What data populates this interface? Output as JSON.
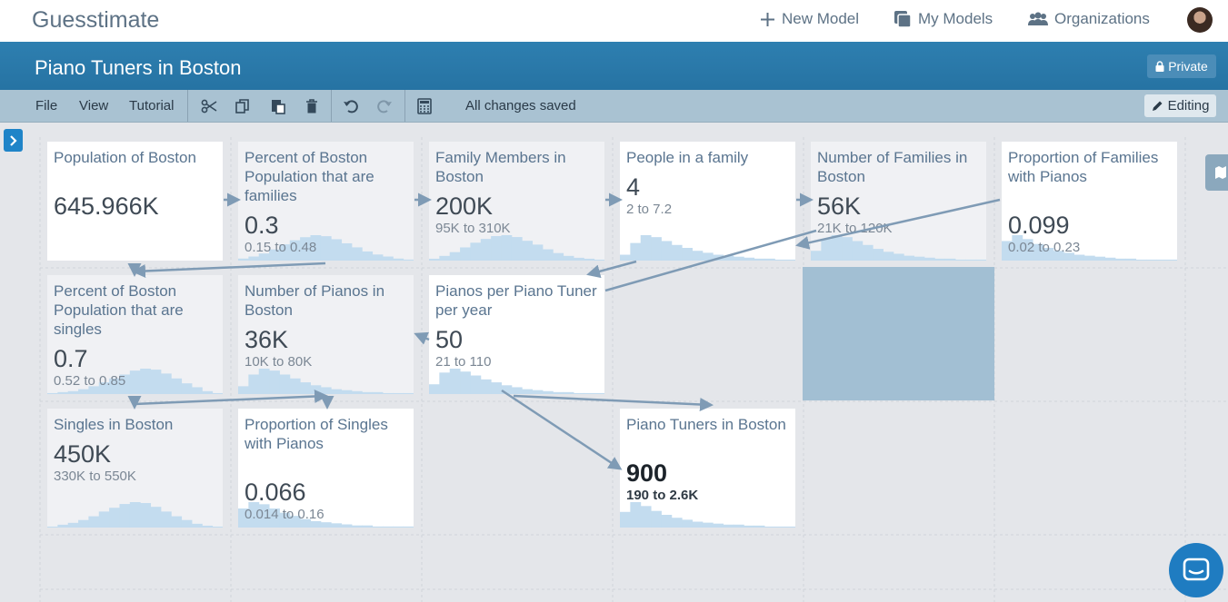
{
  "app": {
    "logo": "Guesstimate"
  },
  "nav": {
    "new_model": "New Model",
    "my_models": "My Models",
    "organizations": "Organizations"
  },
  "model": {
    "title": "Piano Tuners in Boston",
    "privacy": "Private"
  },
  "toolbar": {
    "file": "File",
    "view": "View",
    "tutorial": "Tutorial",
    "status": "All changes saved",
    "editing": "Editing"
  },
  "colors": {
    "accent": "#2673a3",
    "histogram": "#c3dcef",
    "arrow": "#7f9bb5"
  },
  "cards": [
    {
      "name": "Population of Boston",
      "value": "645.966K",
      "range": "",
      "hist": []
    },
    {
      "name": "Percent of Boston Population that are families",
      "value": "0.3",
      "range": "0.15 to 0.48",
      "hist": [
        2,
        4,
        7,
        11,
        16,
        20,
        23,
        25,
        24,
        21,
        17,
        13,
        9,
        6,
        4,
        2,
        1
      ]
    },
    {
      "name": "Family Members in Boston",
      "value": "200K",
      "range": "95K to 310K",
      "hist": [
        2,
        5,
        9,
        14,
        19,
        23,
        26,
        27,
        25,
        21,
        17,
        12,
        8,
        5,
        3,
        2,
        1
      ]
    },
    {
      "name": "People in a family",
      "value": "4",
      "range": "2 to 7.2",
      "hist": [
        6,
        18,
        26,
        24,
        20,
        16,
        13,
        10,
        8,
        6,
        5,
        4,
        3,
        2,
        2,
        1,
        1
      ]
    },
    {
      "name": "Number of Families in Boston",
      "value": "56K",
      "range": "21K to 120K",
      "hist": [
        10,
        22,
        26,
        24,
        20,
        16,
        12,
        9,
        7,
        5,
        4,
        3,
        2,
        2,
        1,
        1,
        1
      ]
    },
    {
      "name": "Proportion of Families with Pianos",
      "value": "0.099",
      "range": "0.02 to 0.23",
      "hist": [
        20,
        26,
        22,
        17,
        13,
        10,
        8,
        6,
        5,
        4,
        3,
        2,
        2,
        1,
        1,
        1,
        1
      ]
    },
    {
      "name": "Percent of Boston Population that are singles",
      "value": "0.7",
      "range": "0.52 to 0.85",
      "hist": [
        1,
        2,
        3,
        5,
        8,
        12,
        16,
        20,
        24,
        26,
        25,
        21,
        16,
        11,
        7,
        3,
        1
      ]
    },
    {
      "name": "Number of Pianos in Boston",
      "value": "36K",
      "range": "10K to 80K",
      "hist": [
        8,
        20,
        26,
        24,
        20,
        16,
        12,
        9,
        7,
        5,
        4,
        3,
        2,
        2,
        1,
        1,
        1
      ]
    },
    {
      "name": "Pianos per Piano Tuner per year",
      "value": "50",
      "range": "21 to 110",
      "hist": [
        10,
        22,
        26,
        23,
        19,
        15,
        12,
        9,
        7,
        5,
        4,
        3,
        2,
        2,
        1,
        1,
        1
      ]
    },
    {
      "name": "Singles in Boston",
      "value": "450K",
      "range": "330K to 550K",
      "hist": [
        1,
        3,
        5,
        8,
        12,
        17,
        21,
        25,
        27,
        26,
        22,
        17,
        12,
        8,
        4,
        2,
        1
      ]
    },
    {
      "name": "Proportion of Singles with Pianos",
      "value": "0.066",
      "range": "0.014 to 0.16",
      "hist": [
        18,
        24,
        22,
        18,
        14,
        11,
        8,
        6,
        5,
        4,
        3,
        2,
        2,
        1,
        1,
        1,
        1
      ]
    },
    {
      "name": "Piano Tuners in Boston",
      "value": "900",
      "range": "190 to 2.6K",
      "hist": [
        16,
        26,
        22,
        17,
        13,
        10,
        8,
        6,
        5,
        4,
        3,
        3,
        2,
        2,
        1,
        1,
        1
      ]
    }
  ]
}
